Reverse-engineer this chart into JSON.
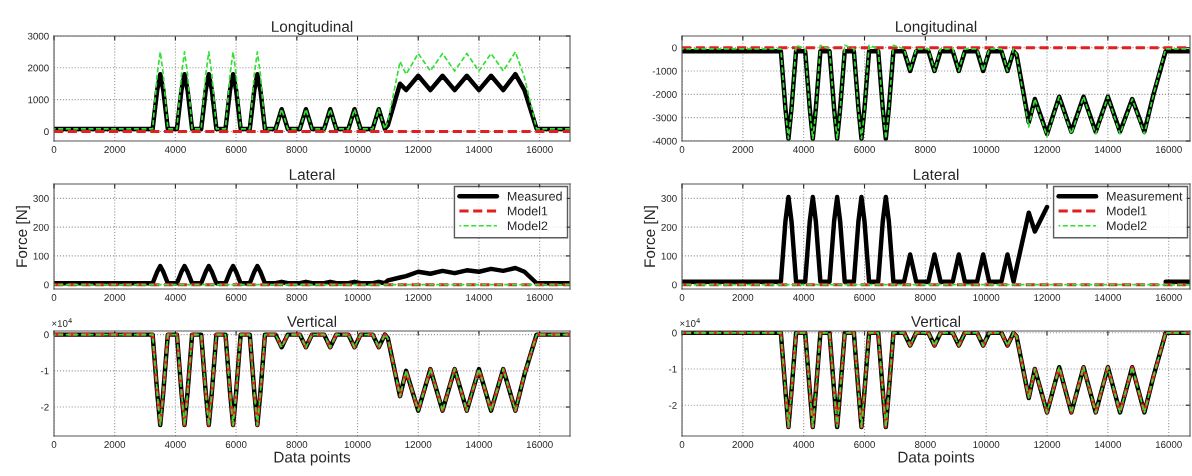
{
  "chart_data": [
    {
      "type": "line",
      "title": "Longitudinal",
      "xlim": [
        0,
        17000
      ],
      "xticks": [
        0,
        2000,
        4000,
        6000,
        8000,
        10000,
        12000,
        14000,
        16000
      ],
      "ylim": [
        -300,
        3000
      ],
      "yticks": [
        0,
        1000,
        2000,
        3000
      ],
      "grid": true,
      "x": [
        0,
        3250,
        3400,
        3500,
        3600,
        3750,
        4050,
        4200,
        4300,
        4400,
        4550,
        4850,
        5000,
        5100,
        5200,
        5350,
        5650,
        5800,
        5900,
        6000,
        6150,
        6450,
        6600,
        6700,
        6800,
        6950,
        7300,
        7500,
        7700,
        8100,
        8300,
        8500,
        8900,
        9100,
        9300,
        9700,
        9900,
        10100,
        10500,
        10700,
        10900,
        11000,
        11400,
        11600,
        12000,
        12400,
        12800,
        13200,
        13600,
        14000,
        14400,
        14800,
        15200,
        15500,
        15900,
        17000
      ],
      "series": [
        {
          "color": "#000000",
          "line_style": "solid",
          "values": [
            80,
            80,
            1300,
            1800,
            1300,
            80,
            80,
            1300,
            1800,
            1300,
            80,
            80,
            1300,
            1800,
            1300,
            80,
            80,
            1300,
            1800,
            1300,
            80,
            80,
            1300,
            1800,
            1300,
            80,
            80,
            700,
            80,
            80,
            700,
            80,
            80,
            700,
            80,
            80,
            700,
            80,
            80,
            700,
            80,
            200,
            1500,
            1300,
            1750,
            1300,
            1750,
            1300,
            1750,
            1300,
            1750,
            1300,
            1800,
            1300,
            80,
            80
          ]
        },
        {
          "color": "#e02020",
          "line_style": "dashed",
          "values": [
            0,
            0,
            0,
            0,
            0,
            0,
            0,
            0,
            0,
            0,
            0,
            0,
            0,
            0,
            0,
            0,
            0,
            0,
            0,
            0,
            0,
            0,
            0,
            0,
            0,
            0,
            0,
            0,
            0,
            0,
            0,
            0,
            0,
            0,
            0,
            0,
            0,
            0,
            0,
            0,
            0,
            0,
            0,
            0,
            0,
            0,
            0,
            0,
            0,
            0,
            0,
            0,
            0,
            0,
            0,
            0
          ]
        },
        {
          "color": "#33e033",
          "line_style": "dashed",
          "values": [
            80,
            80,
            1800,
            2500,
            1800,
            80,
            80,
            1800,
            2500,
            1800,
            80,
            80,
            1800,
            2500,
            1800,
            80,
            80,
            1800,
            2500,
            1800,
            80,
            80,
            1800,
            2500,
            1800,
            80,
            80,
            700,
            80,
            80,
            700,
            80,
            80,
            700,
            80,
            80,
            700,
            80,
            80,
            700,
            80,
            300,
            2200,
            1800,
            2450,
            1900,
            2450,
            1900,
            2450,
            1900,
            2450,
            1900,
            2500,
            1700,
            80,
            80
          ]
        }
      ]
    },
    {
      "type": "line",
      "title": "Longitudinal",
      "xlim": [
        0,
        16700
      ],
      "xticks": [
        0,
        2000,
        4000,
        6000,
        8000,
        10000,
        12000,
        14000,
        16000
      ],
      "ylim": [
        -4000,
        500
      ],
      "yticks": [
        -4000,
        -3000,
        -2000,
        -1000,
        0
      ],
      "grid": true,
      "x": [
        0,
        3250,
        3400,
        3500,
        3600,
        3750,
        4050,
        4200,
        4300,
        4400,
        4550,
        4850,
        5000,
        5100,
        5200,
        5350,
        5650,
        5800,
        5900,
        6000,
        6150,
        6450,
        6600,
        6700,
        6800,
        6950,
        7300,
        7500,
        7700,
        8100,
        8300,
        8500,
        8900,
        9100,
        9300,
        9700,
        9900,
        10100,
        10500,
        10700,
        10900,
        11000,
        11400,
        11600,
        12000,
        12400,
        12800,
        13200,
        13600,
        14000,
        14400,
        14800,
        15200,
        15500,
        15900,
        16700
      ],
      "series": [
        {
          "color": "#000000",
          "line_style": "solid",
          "values": [
            -150,
            -150,
            -2600,
            -3900,
            -2600,
            -150,
            -150,
            -2600,
            -3900,
            -2600,
            -150,
            -150,
            -2600,
            -3900,
            -2600,
            -150,
            -150,
            -2600,
            -3900,
            -2600,
            -150,
            -150,
            -2600,
            -3900,
            -2600,
            -150,
            -150,
            -1000,
            -150,
            -150,
            -1000,
            -150,
            -150,
            -1000,
            -150,
            -150,
            -1000,
            -150,
            -150,
            -1000,
            -150,
            -300,
            -3200,
            -2200,
            -3700,
            -2100,
            -3600,
            -2100,
            -3600,
            -2100,
            -3600,
            -2200,
            -3600,
            -2000,
            -150,
            -150
          ]
        },
        {
          "color": "#e02020",
          "line_style": "dashed",
          "values": [
            0,
            0,
            0,
            0,
            0,
            0,
            0,
            0,
            0,
            0,
            0,
            0,
            0,
            0,
            0,
            0,
            0,
            0,
            0,
            0,
            0,
            0,
            0,
            0,
            0,
            0,
            0,
            0,
            0,
            0,
            0,
            0,
            0,
            0,
            0,
            0,
            0,
            0,
            0,
            0,
            0,
            0,
            0,
            0,
            0,
            0,
            0,
            0,
            0,
            0,
            0,
            0,
            0,
            0,
            0,
            0
          ]
        },
        {
          "color": "#33e033",
          "line_style": "dashed",
          "values": [
            -50,
            -50,
            -2700,
            -3900,
            -2700,
            100,
            -50,
            -2700,
            -3900,
            -2700,
            100,
            -50,
            -2700,
            -3900,
            -2700,
            100,
            -50,
            -2700,
            -3900,
            -2700,
            100,
            -50,
            -2700,
            -3900,
            -2700,
            100,
            -50,
            -1000,
            -50,
            -50,
            -1000,
            -50,
            -50,
            -1000,
            -50,
            -50,
            -1000,
            -50,
            -50,
            -1000,
            -50,
            -300,
            -3400,
            -2200,
            -3800,
            -2100,
            -3700,
            -2100,
            -3700,
            -2100,
            -3700,
            -2200,
            -3700,
            -2000,
            -50,
            -50
          ]
        }
      ]
    },
    {
      "type": "line",
      "title": "Lateral",
      "ylabel": "Force [N]",
      "xlim": [
        0,
        17000
      ],
      "xticks": [
        0,
        2000,
        4000,
        6000,
        8000,
        10000,
        12000,
        14000,
        16000
      ],
      "ylim": [
        -15,
        350
      ],
      "yticks": [
        0,
        100,
        200,
        300
      ],
      "grid": true,
      "legend": "top right",
      "x": [
        0,
        3250,
        3400,
        3500,
        3600,
        3750,
        4050,
        4200,
        4300,
        4400,
        4550,
        4850,
        5000,
        5100,
        5200,
        5350,
        5650,
        5800,
        5900,
        6000,
        6150,
        6450,
        6600,
        6700,
        6800,
        6950,
        7300,
        7500,
        7700,
        8100,
        8300,
        8500,
        8900,
        9100,
        9300,
        9700,
        9900,
        10100,
        10500,
        10700,
        10900,
        11000,
        11400,
        11600,
        12000,
        12400,
        12800,
        13200,
        13600,
        14000,
        14400,
        14800,
        15200,
        15500,
        15900,
        17000
      ],
      "series": [
        {
          "name": "Measured",
          "color": "#000000",
          "line_style": "solid",
          "values": [
            5,
            5,
            45,
            65,
            45,
            5,
            5,
            45,
            65,
            45,
            5,
            5,
            45,
            65,
            45,
            5,
            5,
            45,
            65,
            45,
            5,
            5,
            45,
            65,
            45,
            5,
            5,
            10,
            5,
            5,
            10,
            5,
            5,
            10,
            5,
            5,
            10,
            5,
            5,
            10,
            5,
            15,
            25,
            30,
            45,
            38,
            48,
            40,
            50,
            45,
            55,
            48,
            58,
            45,
            5,
            5
          ]
        },
        {
          "name": "Model1",
          "color": "#e02020",
          "line_style": "dashed",
          "values": [
            0,
            0,
            0,
            0,
            0,
            0,
            0,
            0,
            0,
            0,
            0,
            0,
            0,
            0,
            0,
            0,
            0,
            0,
            0,
            0,
            0,
            0,
            0,
            0,
            0,
            0,
            0,
            0,
            0,
            0,
            0,
            0,
            0,
            0,
            0,
            0,
            0,
            0,
            0,
            0,
            0,
            0,
            0,
            0,
            0,
            0,
            0,
            0,
            0,
            0,
            0,
            0,
            0,
            0,
            0,
            0
          ]
        },
        {
          "name": "Model2",
          "color": "#33e033",
          "line_style": "dashed",
          "values": [
            0,
            0,
            0,
            0,
            0,
            0,
            0,
            0,
            0,
            0,
            0,
            0,
            0,
            0,
            0,
            0,
            0,
            0,
            0,
            0,
            0,
            0,
            0,
            0,
            0,
            0,
            0,
            0,
            0,
            0,
            0,
            0,
            0,
            0,
            0,
            0,
            0,
            0,
            0,
            0,
            0,
            0,
            0,
            0,
            0,
            0,
            0,
            0,
            0,
            0,
            0,
            0,
            0,
            0,
            0,
            0
          ]
        }
      ]
    },
    {
      "type": "line",
      "title": "Lateral",
      "ylabel": "Force [N]",
      "xlim": [
        0,
        16700
      ],
      "xticks": [
        0,
        2000,
        4000,
        6000,
        8000,
        10000,
        12000,
        14000,
        16000
      ],
      "ylim": [
        -15,
        350
      ],
      "yticks": [
        0,
        100,
        200,
        300
      ],
      "grid": true,
      "legend": "top right",
      "x": [
        0,
        3250,
        3400,
        3500,
        3600,
        3750,
        4050,
        4200,
        4300,
        4400,
        4550,
        4850,
        5000,
        5100,
        5200,
        5350,
        5650,
        5800,
        5900,
        6000,
        6150,
        6450,
        6600,
        6700,
        6800,
        6950,
        7300,
        7500,
        7700,
        8100,
        8300,
        8500,
        8900,
        9100,
        9300,
        9700,
        9900,
        10100,
        10500,
        10700,
        10900,
        11000,
        11400,
        11600,
        12000,
        12400,
        12800,
        13200,
        13600,
        14000,
        14400,
        14800,
        15200,
        15500,
        15900,
        16700
      ],
      "series": [
        {
          "name": "Measurement",
          "color": "#000000",
          "line_style": "solid",
          "values": [
            10,
            10,
            220,
            305,
            220,
            10,
            10,
            220,
            305,
            220,
            10,
            10,
            220,
            305,
            220,
            10,
            10,
            220,
            305,
            220,
            10,
            10,
            220,
            305,
            220,
            10,
            10,
            105,
            10,
            10,
            105,
            10,
            10,
            105,
            10,
            10,
            105,
            10,
            10,
            105,
            10,
            60,
            250,
            185,
            270,
            null,
            null,
            null,
            null,
            null,
            null,
            null,
            null,
            null,
            10,
            10
          ]
        },
        {
          "name": "Model1",
          "color": "#e02020",
          "line_style": "dashed",
          "values": [
            0,
            0,
            0,
            0,
            0,
            0,
            0,
            0,
            0,
            0,
            0,
            0,
            0,
            0,
            0,
            0,
            0,
            0,
            0,
            0,
            0,
            0,
            0,
            0,
            0,
            0,
            0,
            0,
            0,
            0,
            0,
            0,
            0,
            0,
            0,
            0,
            0,
            0,
            0,
            0,
            0,
            0,
            0,
            0,
            0,
            0,
            0,
            0,
            0,
            0,
            0,
            0,
            0,
            0,
            0,
            0
          ]
        },
        {
          "name": "Model2",
          "color": "#33e033",
          "line_style": "dashed",
          "values": [
            0,
            0,
            0,
            0,
            0,
            0,
            0,
            0,
            0,
            0,
            0,
            0,
            0,
            0,
            0,
            0,
            0,
            0,
            0,
            0,
            0,
            0,
            0,
            0,
            0,
            0,
            0,
            0,
            0,
            0,
            0,
            0,
            0,
            0,
            0,
            0,
            0,
            0,
            0,
            0,
            0,
            0,
            0,
            0,
            0,
            0,
            0,
            0,
            0,
            0,
            0,
            0,
            0,
            0,
            0,
            0
          ]
        }
      ]
    },
    {
      "type": "line",
      "title": "Vertical",
      "xlabel": "Data points",
      "annotations": [
        "×10$^{4}$"
      ],
      "xlim": [
        0,
        17000
      ],
      "xticks": [
        0,
        2000,
        4000,
        6000,
        8000,
        10000,
        12000,
        14000,
        16000
      ],
      "ylim": [
        -2.8,
        0.1
      ],
      "yticks": [
        -2,
        -1,
        0
      ],
      "grid": true,
      "x": [
        0,
        3250,
        3400,
        3500,
        3600,
        3750,
        4050,
        4200,
        4300,
        4400,
        4550,
        4850,
        5000,
        5100,
        5200,
        5350,
        5650,
        5800,
        5900,
        6000,
        6150,
        6450,
        6600,
        6700,
        6800,
        6950,
        7300,
        7500,
        7700,
        8100,
        8300,
        8500,
        8900,
        9100,
        9300,
        9700,
        9900,
        10100,
        10500,
        10700,
        10900,
        11000,
        11400,
        11600,
        12000,
        12400,
        12800,
        13200,
        13600,
        14000,
        14400,
        14800,
        15200,
        15500,
        15900,
        17000
      ],
      "series": [
        {
          "color": "#000000",
          "line_style": "solid",
          "values": [
            0,
            0,
            -1.6,
            -2.5,
            -1.6,
            0,
            0,
            -1.6,
            -2.5,
            -1.6,
            0,
            0,
            -1.6,
            -2.5,
            -1.6,
            0,
            0,
            -1.6,
            -2.5,
            -1.6,
            0,
            0,
            -1.6,
            -2.5,
            -1.6,
            0,
            0,
            -0.35,
            0,
            0,
            -0.35,
            0,
            0,
            -0.35,
            0,
            0,
            -0.35,
            0,
            0,
            -0.35,
            0,
            -0.1,
            -1.7,
            -1.0,
            -2.1,
            -0.95,
            -2.1,
            -0.95,
            -2.1,
            -0.95,
            -2.1,
            -0.95,
            -2.1,
            -1.1,
            0,
            0
          ]
        },
        {
          "color": "#e02020",
          "line_style": "dashed",
          "values": [
            0,
            0,
            -1.6,
            -2.5,
            -1.6,
            0,
            0,
            -1.6,
            -2.5,
            -1.6,
            0,
            0,
            -1.6,
            -2.5,
            -1.6,
            0,
            0,
            -1.6,
            -2.5,
            -1.6,
            0,
            0,
            -1.6,
            -2.5,
            -1.6,
            0,
            0,
            -0.35,
            0,
            0,
            -0.35,
            0,
            0,
            -0.35,
            0,
            0,
            -0.35,
            0,
            0,
            -0.35,
            0,
            -0.1,
            -1.7,
            -1.0,
            -2.1,
            -0.95,
            -2.1,
            -0.95,
            -2.1,
            -0.95,
            -2.1,
            -0.95,
            -2.1,
            -1.1,
            0,
            0
          ]
        },
        {
          "color": "#33e033",
          "line_style": "dashed",
          "values": [
            0,
            0,
            -1.6,
            -2.5,
            -1.6,
            0,
            0,
            -1.6,
            -2.5,
            -1.6,
            0,
            0,
            -1.6,
            -2.5,
            -1.6,
            0,
            0,
            -1.6,
            -2.5,
            -1.6,
            0,
            0,
            -1.6,
            -2.5,
            -1.6,
            0,
            0,
            -0.35,
            0,
            0,
            -0.35,
            0,
            0,
            -0.35,
            0,
            0,
            -0.35,
            0,
            0,
            -0.35,
            0,
            -0.1,
            -1.7,
            -1.0,
            -2.1,
            -0.95,
            -2.1,
            -0.95,
            -2.1,
            -0.95,
            -2.1,
            -0.95,
            -2.1,
            -1.1,
            0,
            0
          ]
        }
      ]
    },
    {
      "type": "line",
      "title": "Vertical",
      "xlabel": "Data points",
      "annotations": [
        "×10$^{4}$"
      ],
      "xlim": [
        0,
        16700
      ],
      "xticks": [
        0,
        2000,
        4000,
        6000,
        8000,
        10000,
        12000,
        14000,
        16000
      ],
      "ylim": [
        -2.85,
        0.05
      ],
      "yticks": [
        -2,
        -1,
        0
      ],
      "grid": true,
      "x": [
        0,
        3250,
        3400,
        3500,
        3600,
        3750,
        4050,
        4200,
        4300,
        4400,
        4550,
        4850,
        5000,
        5100,
        5200,
        5350,
        5650,
        5800,
        5900,
        6000,
        6150,
        6450,
        6600,
        6700,
        6800,
        6950,
        7300,
        7500,
        7700,
        8100,
        8300,
        8500,
        8900,
        9100,
        9300,
        9700,
        9900,
        10100,
        10500,
        10700,
        10900,
        11000,
        11400,
        11600,
        12000,
        12400,
        12800,
        13200,
        13600,
        14000,
        14400,
        14800,
        15200,
        15500,
        15900,
        16700
      ],
      "series": [
        {
          "color": "#000000",
          "line_style": "solid",
          "values": [
            0,
            0,
            -1.6,
            -2.6,
            -1.6,
            0,
            0,
            -1.6,
            -2.6,
            -1.6,
            0,
            0,
            -1.6,
            -2.6,
            -1.6,
            0,
            0,
            -1.6,
            -2.6,
            -1.6,
            0,
            0,
            -1.6,
            -2.6,
            -1.6,
            0,
            0,
            -0.35,
            0,
            0,
            -0.35,
            0,
            0,
            -0.35,
            0,
            0,
            -0.35,
            0,
            0,
            -0.35,
            0,
            -0.1,
            -1.8,
            -1.0,
            -2.2,
            -0.95,
            -2.2,
            -0.95,
            -2.2,
            -0.95,
            -2.2,
            -0.95,
            -2.2,
            -1.2,
            0,
            0
          ]
        },
        {
          "color": "#e02020",
          "line_style": "dashed",
          "values": [
            0,
            0,
            -1.6,
            -2.6,
            -1.6,
            0,
            0,
            -1.6,
            -2.6,
            -1.6,
            0,
            0,
            -1.6,
            -2.6,
            -1.6,
            0,
            0,
            -1.6,
            -2.6,
            -1.6,
            0,
            0,
            -1.6,
            -2.6,
            -1.6,
            0,
            0,
            -0.35,
            0,
            0,
            -0.35,
            0,
            0,
            -0.35,
            0,
            0,
            -0.35,
            0,
            0,
            -0.35,
            0,
            -0.1,
            -1.8,
            -1.0,
            -2.2,
            -0.95,
            -2.2,
            -0.95,
            -2.2,
            -0.95,
            -2.2,
            -0.95,
            -2.2,
            -1.2,
            0,
            0
          ]
        },
        {
          "color": "#33e033",
          "line_style": "dashed",
          "values": [
            0,
            0,
            -1.6,
            -2.6,
            -1.6,
            0,
            0,
            -1.6,
            -2.6,
            -1.6,
            0,
            0,
            -1.6,
            -2.6,
            -1.6,
            0,
            0,
            -1.6,
            -2.6,
            -1.6,
            0,
            0,
            -1.6,
            -2.6,
            -1.6,
            0,
            0,
            -0.35,
            0,
            0,
            -0.35,
            0,
            0,
            -0.35,
            0,
            0,
            -0.35,
            0,
            0,
            -0.35,
            0,
            -0.1,
            -1.8,
            -1.0,
            -2.2,
            -0.95,
            -2.2,
            -0.95,
            -2.2,
            -0.95,
            -2.2,
            -0.95,
            -2.2,
            -1.2,
            0,
            0
          ]
        }
      ]
    }
  ]
}
